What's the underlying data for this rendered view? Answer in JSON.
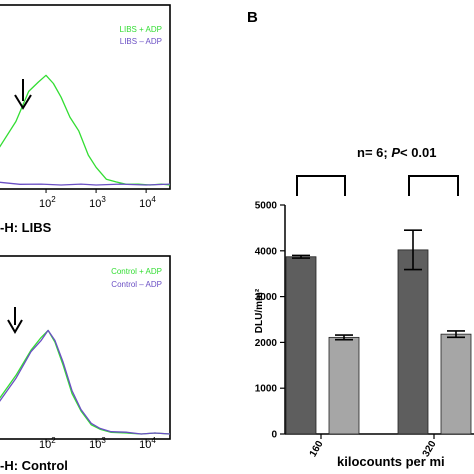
{
  "panel_b_letter": "B",
  "stat_text": "n= 6; ",
  "stat_p": "P",
  "stat_rest": "< 0.01",
  "chart_data": [
    {
      "type": "line",
      "panel": "A-top",
      "xlabel": "-H: LIBS",
      "x_scale": "log",
      "xlim": [
        10,
        30000
      ],
      "x_ticks": [
        {
          "value": 100,
          "base": "10",
          "exp": "2"
        },
        {
          "value": 1000,
          "base": "10",
          "exp": "3"
        },
        {
          "value": 10000,
          "base": "10",
          "exp": "4"
        }
      ],
      "legend": [
        {
          "name": "LIBS + ADP",
          "color": "#33dd33"
        },
        {
          "name": "LIBS – ADP",
          "color": "#6a4fc4"
        }
      ],
      "annotation": "arrow at peak (~10^2)",
      "series": [
        {
          "name": "LIBS + ADP",
          "color": "#33dd33",
          "x": [
            10,
            25,
            45,
            70,
            100,
            140,
            200,
            300,
            450,
            700,
            1000,
            1600,
            2500,
            4000,
            7000,
            12000,
            20000,
            30000
          ],
          "y": [
            0.78,
            0.55,
            0.36,
            0.28,
            0.25,
            0.29,
            0.4,
            0.52,
            0.63,
            0.78,
            0.88,
            0.95,
            0.975,
            0.985,
            0.99,
            0.99,
            0.99,
            0.99
          ]
        },
        {
          "name": "LIBS – ADP",
          "color": "#6a4fc4",
          "x": [
            10,
            30,
            80,
            200,
            500,
            1000,
            3000,
            10000,
            30000
          ],
          "y": [
            0.975,
            0.985,
            0.99,
            0.99,
            0.99,
            0.99,
            0.99,
            0.99,
            0.99
          ]
        }
      ]
    },
    {
      "type": "line",
      "panel": "A-bottom",
      "xlabel": "-H: Control",
      "x_scale": "log",
      "xlim": [
        10,
        30000
      ],
      "x_ticks": [
        {
          "value": 100,
          "base": "10",
          "exp": "2"
        },
        {
          "value": 1000,
          "base": "10",
          "exp": "3"
        },
        {
          "value": 10000,
          "base": "10",
          "exp": "4"
        }
      ],
      "legend": [
        {
          "name": "Control + ADP",
          "color": "#33dd33"
        },
        {
          "name": "Control – ADP",
          "color": "#6a4fc4"
        }
      ],
      "annotation": "arrow at peak (~10^2)",
      "series": [
        {
          "name": "Control + ADP",
          "color": "#33dd33",
          "x": [
            10,
            25,
            50,
            80,
            110,
            150,
            220,
            330,
            500,
            800,
            1200,
            2000,
            4000,
            8000,
            15000,
            30000
          ],
          "y": [
            0.8,
            0.6,
            0.45,
            0.35,
            0.32,
            0.38,
            0.55,
            0.72,
            0.85,
            0.93,
            0.965,
            0.98,
            0.99,
            0.99,
            0.99,
            0.99
          ]
        },
        {
          "name": "Control – ADP",
          "color": "#6a4fc4",
          "x": [
            10,
            25,
            50,
            80,
            110,
            150,
            220,
            330,
            500,
            800,
            1200,
            2000,
            4000,
            8000,
            15000,
            30000
          ],
          "y": [
            0.82,
            0.62,
            0.46,
            0.37,
            0.32,
            0.37,
            0.53,
            0.7,
            0.84,
            0.92,
            0.96,
            0.975,
            0.985,
            0.99,
            0.99,
            0.99
          ]
        }
      ]
    },
    {
      "type": "bar",
      "panel": "B",
      "ylabel": "DLU/mm²",
      "xlabel": "kilocounts per mi",
      "ylim": [
        0,
        5000
      ],
      "y_ticks": [
        "0",
        "1000",
        "2000",
        "3000",
        "4000",
        "5000"
      ],
      "categories": [
        "160",
        "320"
      ],
      "bar_colors": [
        "#5e5e5e",
        "#a6a6a6"
      ],
      "bars": [
        {
          "group": "160",
          "value": 3870,
          "error": 30
        },
        {
          "group": "160",
          "value": 2110,
          "error": 50
        },
        {
          "group": "320",
          "value": 4020,
          "error": 430
        },
        {
          "group": "320",
          "value": 2180,
          "error": 70
        }
      ],
      "significance": "n= 6; P< 0.01"
    }
  ]
}
